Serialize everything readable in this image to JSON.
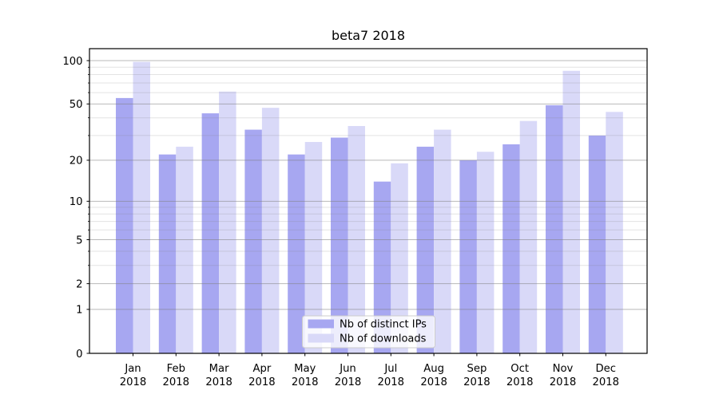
{
  "title": "beta7 2018",
  "colors": {
    "series1": "#a7a7f1",
    "series2": "#d9d9f8",
    "grid_major": "rgba(128,128,128,0.55)",
    "grid_minor": "rgba(128,128,128,0.22)",
    "axis": "#000000",
    "legend_border": "#cccccc",
    "legend_bg": "rgba(255,255,255,0.8)"
  },
  "chart_data": {
    "type": "bar",
    "title": "beta7 2018",
    "categories": [
      {
        "month": "Jan",
        "year": "2018"
      },
      {
        "month": "Feb",
        "year": "2018"
      },
      {
        "month": "Mar",
        "year": "2018"
      },
      {
        "month": "Apr",
        "year": "2018"
      },
      {
        "month": "May",
        "year": "2018"
      },
      {
        "month": "Jun",
        "year": "2018"
      },
      {
        "month": "Jul",
        "year": "2018"
      },
      {
        "month": "Aug",
        "year": "2018"
      },
      {
        "month": "Sep",
        "year": "2018"
      },
      {
        "month": "Oct",
        "year": "2018"
      },
      {
        "month": "Nov",
        "year": "2018"
      },
      {
        "month": "Dec",
        "year": "2018"
      }
    ],
    "series": [
      {
        "name": "Nb of distinct IPs",
        "values": [
          55,
          22,
          43,
          33,
          22,
          29,
          14,
          25,
          20,
          26,
          49,
          30
        ]
      },
      {
        "name": "Nb of downloads",
        "values": [
          98,
          25,
          61,
          47,
          27,
          35,
          19,
          33,
          23,
          38,
          85,
          44
        ]
      }
    ],
    "yscale": "log1p",
    "ylim": [
      0,
      121
    ],
    "yticks": [
      0,
      1,
      2,
      5,
      10,
      20,
      50,
      100
    ],
    "yticks_minor": [
      3,
      4,
      6,
      7,
      8,
      9,
      30,
      40,
      60,
      70,
      80,
      90
    ],
    "grid": "both",
    "legend_position": "lower center"
  }
}
